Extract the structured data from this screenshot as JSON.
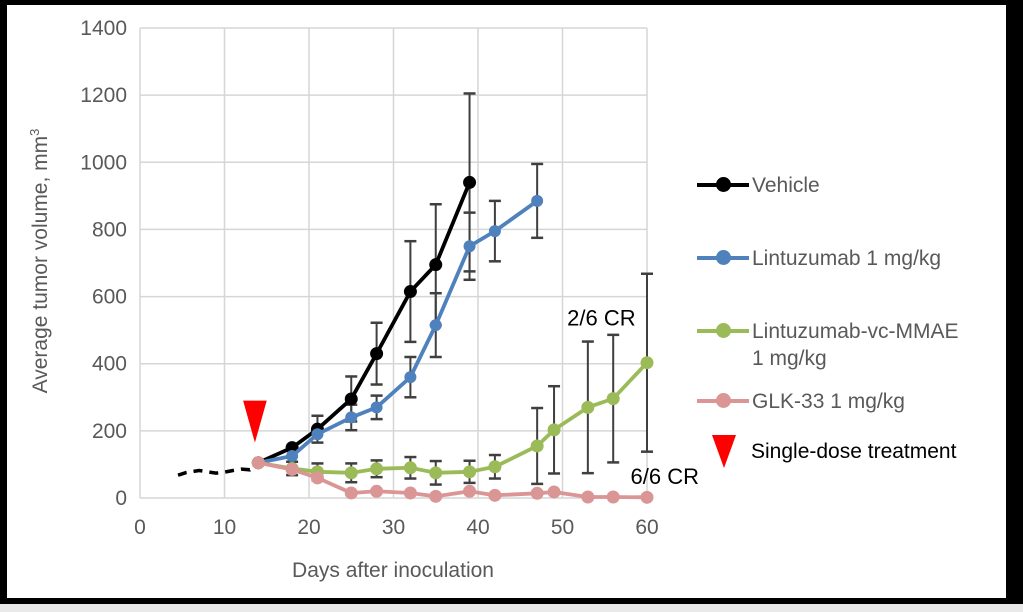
{
  "frame": {
    "border_color": "#000000",
    "canvas_color": "#ffffff",
    "bottom_strip_color": "#e9e9e9"
  },
  "chart_data": {
    "type": "line",
    "title": "",
    "xlabel": "Days after inoculation",
    "ylabel_text": "Average tumor volume, mm",
    "ylabel_sup": "3",
    "xlim": [
      0,
      60
    ],
    "ylim": [
      0,
      1400
    ],
    "x_ticks": [
      0,
      10,
      20,
      30,
      40,
      50,
      60
    ],
    "y_ticks": [
      0,
      200,
      400,
      600,
      800,
      1000,
      1200,
      1400
    ],
    "grid": true,
    "grid_color": "#d6d6d6",
    "axis_text_color": "#595959",
    "error_bar_color": "#3f3f3f",
    "annotation_color": "#000000",
    "pretreatment": {
      "name": "shared pre-treatment growth (dashed)",
      "color": "#000000",
      "x": [
        4.5,
        5.5,
        7,
        8,
        9,
        10,
        11,
        12,
        13,
        14
      ],
      "y": [
        68,
        76,
        82,
        78,
        74,
        77,
        82,
        86,
        84,
        104
      ]
    },
    "series": [
      {
        "name": "Vehicle",
        "color": "#000000",
        "marker_r": 6.5,
        "x": [
          14,
          18,
          21,
          25,
          28,
          32,
          35,
          39
        ],
        "y": [
          105,
          150,
          205,
          295,
          430,
          615,
          695,
          940
        ],
        "err": [
          0,
          0,
          40,
          67,
          92,
          150,
          180,
          265
        ]
      },
      {
        "name": "Lintuzumab 1 mg/kg",
        "color": "#4F81BD",
        "marker_r": 6,
        "x": [
          14,
          18,
          21,
          25,
          28,
          32,
          35,
          39,
          42,
          47
        ],
        "y": [
          105,
          125,
          190,
          240,
          270,
          360,
          515,
          750,
          795,
          885
        ],
        "err": [
          0,
          0,
          0,
          38,
          35,
          60,
          95,
          100,
          90,
          110
        ]
      },
      {
        "name": "Lintuzumab-vc-MMAE 1 mg/kg",
        "color": "#9BBB59",
        "marker_r": 6.5,
        "x": [
          14,
          18,
          21,
          25,
          28,
          32,
          35,
          39,
          42,
          47,
          49,
          53,
          56,
          60
        ],
        "y": [
          105,
          88,
          78,
          75,
          87,
          90,
          75,
          78,
          93,
          155,
          203,
          270,
          296,
          403
        ],
        "err": [
          0,
          20,
          25,
          28,
          25,
          32,
          35,
          33,
          35,
          113,
          130,
          196,
          190,
          265
        ]
      },
      {
        "name": "GLK-33 1 mg/kg",
        "color": "#D99694",
        "marker_r": 6.5,
        "x": [
          14,
          18,
          21,
          25,
          28,
          32,
          35,
          39,
          42,
          47,
          49,
          53,
          56,
          60
        ],
        "y": [
          105,
          85,
          60,
          15,
          20,
          15,
          5,
          20,
          8,
          14,
          18,
          3,
          3,
          2
        ],
        "err": [
          0,
          0,
          0,
          0,
          0,
          0,
          0,
          0,
          0,
          0,
          0,
          0,
          0,
          0
        ]
      }
    ],
    "annotations": [
      {
        "text": "2/6 CR",
        "day": 54.6,
        "value": 537
      },
      {
        "text": "6/6 CR",
        "day": 62.1,
        "value": 65
      }
    ],
    "treatment_arrow": {
      "day": 13.6,
      "tip_value": 165,
      "top_value": 290,
      "half_width_days": 1.4,
      "color": "#FF0000"
    }
  },
  "legend": {
    "items": [
      {
        "label": "Vehicle",
        "color": "#000000"
      },
      {
        "label": "Lintuzumab 1 mg/kg",
        "color": "#4F81BD"
      },
      {
        "label": "Lintuzumab-vc-MMAE 1 mg/kg",
        "color": "#9BBB59"
      },
      {
        "label": "GLK-33 1 mg/kg",
        "color": "#D99694"
      }
    ],
    "treatment_label": "Single-dose treatment",
    "arrow_color": "#FF0000"
  }
}
